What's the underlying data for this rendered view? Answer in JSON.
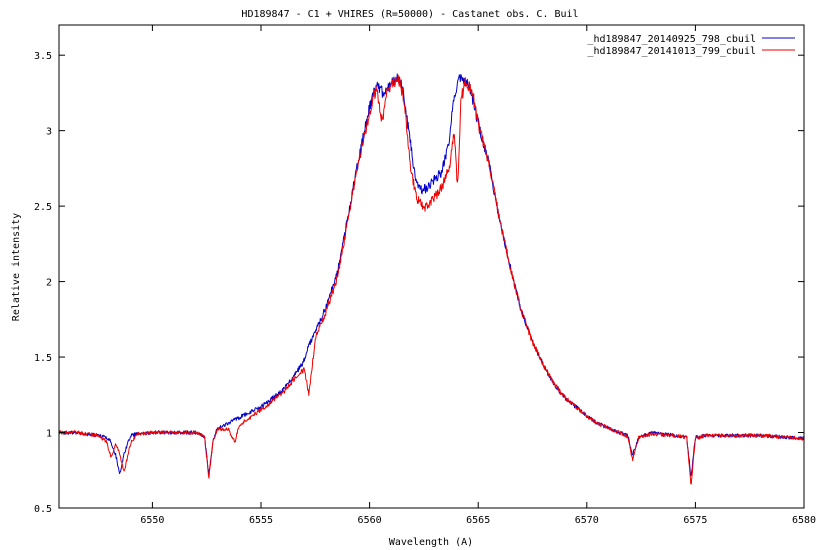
{
  "chart_data": {
    "type": "line",
    "title": "HD189847 - C1 + VHIRES (R=50000) - Castanet obs. C. Buil",
    "xlabel": "Wavelength (A)",
    "ylabel": "Relative intensity",
    "xlim": [
      6545.7,
      6580
    ],
    "ylim": [
      0.5,
      3.7
    ],
    "xticks": [
      6550,
      6555,
      6560,
      6565,
      6570,
      6575,
      6580
    ],
    "xtick_labels": [
      "6550",
      "6555",
      "6560",
      "6565",
      "6570",
      "6575",
      "6580"
    ],
    "yticks": [
      0.5,
      1,
      1.5,
      2,
      2.5,
      3,
      3.5
    ],
    "ytick_labels": [
      "0.5",
      "1",
      "1.5",
      "2",
      "2.5",
      "3",
      "3.5"
    ],
    "grid": false,
    "legend_position": "top-right",
    "series": [
      {
        "name": "_hd189847_20140925_798_cbuil",
        "color": "#0000cc",
        "x": [
          6545.7,
          6546.5,
          6547.5,
          6548.0,
          6548.3,
          6548.5,
          6548.7,
          6549.0,
          6549.3,
          6550.0,
          6551.0,
          6552.0,
          6552.4,
          6552.6,
          6552.8,
          6553.0,
          6553.5,
          6554.0,
          6555.0,
          6556.0,
          6556.5,
          6557.0,
          6557.2,
          6557.5,
          6558.0,
          6558.5,
          6559.0,
          6559.5,
          6560.0,
          6560.3,
          6560.6,
          6560.9,
          6561.2,
          6561.5,
          6561.8,
          6562.1,
          6562.4,
          6562.7,
          6563.0,
          6563.3,
          6563.6,
          6563.9,
          6564.1,
          6564.3,
          6564.6,
          6565.0,
          6565.5,
          6566.0,
          6566.5,
          6567.0,
          6567.5,
          6568.0,
          6568.5,
          6569.0,
          6569.5,
          6570.0,
          6570.5,
          6571.0,
          6571.5,
          6571.9,
          6572.1,
          6572.4,
          6573.0,
          6574.0,
          6574.6,
          6574.8,
          6575.0,
          6575.5,
          6576.0,
          6577.0,
          6578.0,
          6579.0,
          6580.0
        ],
        "y": [
          1.0,
          1.0,
          0.98,
          0.96,
          0.86,
          0.72,
          0.86,
          0.98,
          0.99,
          1.0,
          1.0,
          1.0,
          0.97,
          0.72,
          0.95,
          1.03,
          1.06,
          1.1,
          1.17,
          1.28,
          1.37,
          1.48,
          1.58,
          1.67,
          1.83,
          2.05,
          2.42,
          2.82,
          3.15,
          3.3,
          3.25,
          3.3,
          3.35,
          3.3,
          3.0,
          2.68,
          2.6,
          2.63,
          2.68,
          2.72,
          2.88,
          3.22,
          3.35,
          3.32,
          3.3,
          3.05,
          2.78,
          2.4,
          2.08,
          1.8,
          1.6,
          1.45,
          1.32,
          1.23,
          1.17,
          1.11,
          1.06,
          1.03,
          1.0,
          0.98,
          0.85,
          0.97,
          1.0,
          0.98,
          0.97,
          0.7,
          0.97,
          0.98,
          0.98,
          0.98,
          0.98,
          0.97,
          0.96
        ]
      },
      {
        "name": "_hd189847_20141013_799_cbuil",
        "color": "#ee0000",
        "x": [
          6545.7,
          6546.5,
          6547.5,
          6547.9,
          6548.1,
          6548.3,
          6548.5,
          6548.7,
          6549.0,
          6549.3,
          6550.0,
          6551.0,
          6552.0,
          6552.4,
          6552.6,
          6552.8,
          6553.0,
          6553.5,
          6553.8,
          6554.0,
          6555.0,
          6556.0,
          6556.5,
          6557.0,
          6557.2,
          6557.5,
          6558.0,
          6558.5,
          6559.0,
          6559.5,
          6560.0,
          6560.3,
          6560.6,
          6560.8,
          6561.0,
          6561.3,
          6561.6,
          6561.9,
          6562.2,
          6562.5,
          6562.8,
          6563.1,
          6563.4,
          6563.7,
          6563.9,
          6564.05,
          6564.2,
          6564.4,
          6564.7,
          6565.0,
          6565.5,
          6566.0,
          6566.5,
          6567.0,
          6567.5,
          6568.0,
          6568.5,
          6569.0,
          6569.5,
          6570.0,
          6570.5,
          6571.0,
          6571.5,
          6571.9,
          6572.1,
          6572.4,
          6573.0,
          6574.0,
          6574.6,
          6574.8,
          6575.0,
          6575.5,
          6576.0,
          6577.0,
          6578.0,
          6579.0,
          6580.0
        ],
        "y": [
          1.0,
          1.0,
          0.98,
          0.94,
          0.83,
          0.93,
          0.85,
          0.74,
          0.93,
          0.99,
          1.0,
          1.0,
          1.0,
          0.97,
          0.7,
          0.95,
          1.02,
          1.02,
          0.94,
          1.05,
          1.15,
          1.26,
          1.35,
          1.42,
          1.25,
          1.62,
          1.8,
          2.02,
          2.4,
          2.8,
          3.12,
          3.28,
          3.05,
          3.25,
          3.3,
          3.36,
          3.2,
          2.72,
          2.55,
          2.48,
          2.52,
          2.58,
          2.65,
          2.78,
          3.0,
          2.6,
          3.2,
          3.32,
          3.28,
          3.05,
          2.78,
          2.4,
          2.08,
          1.8,
          1.6,
          1.45,
          1.32,
          1.23,
          1.17,
          1.11,
          1.06,
          1.03,
          1.0,
          0.97,
          0.82,
          0.97,
          0.99,
          0.98,
          0.97,
          0.65,
          0.96,
          0.98,
          0.98,
          0.98,
          0.98,
          0.97,
          0.96
        ]
      }
    ]
  }
}
